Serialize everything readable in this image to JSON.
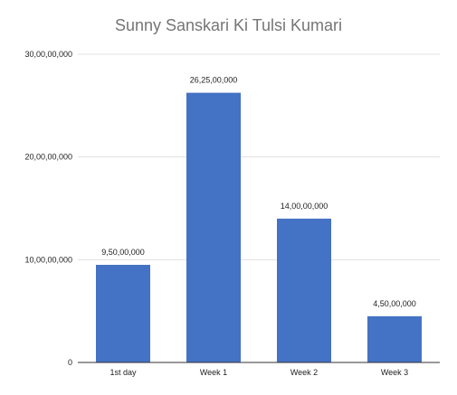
{
  "chart_data": {
    "type": "bar",
    "title": "Sunny Sanskari Ki Tulsi Kumari",
    "categories": [
      "1st day",
      "Week 1",
      "Week 2",
      "Week 3"
    ],
    "values": [
      95000000,
      262500000,
      140000000,
      45000000
    ],
    "data_labels": [
      "9,50,00,000",
      "26,25,00,000",
      "14,00,00,000",
      "4,50,00,000"
    ],
    "y_ticks": [
      0,
      100000000,
      200000000,
      300000000
    ],
    "y_tick_labels": [
      "0",
      "10,00,00,000",
      "20,00,00,000",
      "30,00,00,000"
    ],
    "ylim": [
      0,
      300000000
    ],
    "xlabel": "",
    "ylabel": "",
    "grid": true,
    "legend": "none",
    "bar_color": "#4472C4"
  }
}
